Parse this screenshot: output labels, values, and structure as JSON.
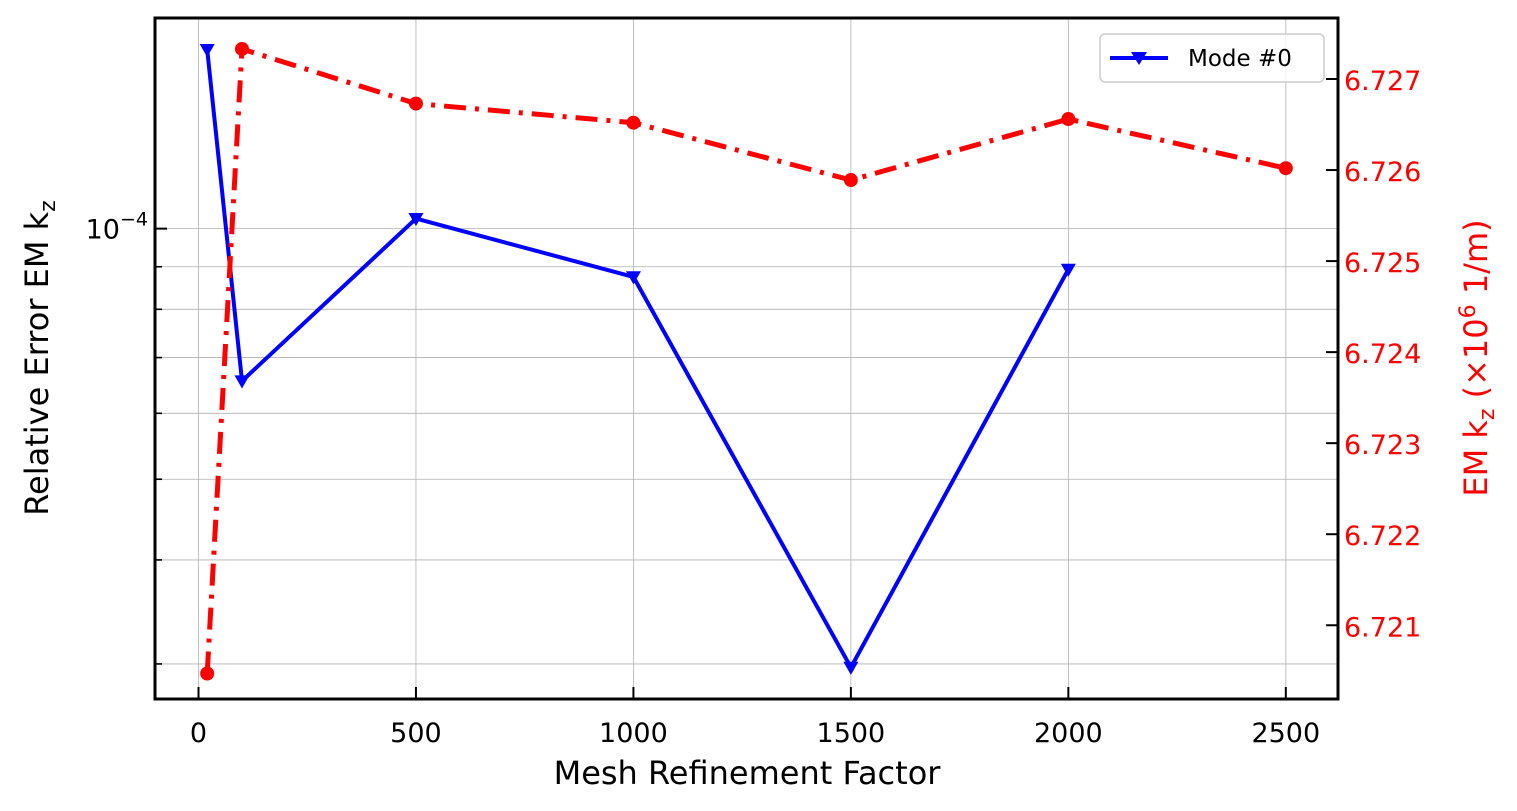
{
  "chart_data": {
    "type": "line",
    "xlabel": "Mesh Refinement Factor",
    "ylabel_left": "Relative Error EM k",
    "ylabel_left_sub": "z",
    "ylabel_right_main": "EM k",
    "ylabel_right_sub": "z",
    "ylabel_right_unit_pre": " (×10",
    "ylabel_right_unit_sup": "6",
    "ylabel_right_unit_post": " 1/m)",
    "xlim": [
      -100,
      2620
    ],
    "xticks": [
      0,
      500,
      1000,
      1500,
      2000,
      2500
    ],
    "ylim_left_log10": [
      -4.565,
      -3.747
    ],
    "yscale_left": "log",
    "yticks_left": [
      {
        "base": "10",
        "exp": "−4",
        "value_log10": -4
      }
    ],
    "ylim_right": [
      6.72019,
      6.72767
    ],
    "yticks_right": [
      "6.721",
      "6.722",
      "6.723",
      "6.724",
      "6.725",
      "6.726",
      "6.727"
    ],
    "yticks_right_values": [
      6.721,
      6.722,
      6.723,
      6.724,
      6.725,
      6.726,
      6.727
    ],
    "grid": true,
    "legend_position": "top-right",
    "series": [
      {
        "name": "Mode #0",
        "axis": "left",
        "color": "#0000ff",
        "marker": "triangle-down",
        "linestyle": "solid",
        "x": [
          20,
          100,
          500,
          1000,
          1500,
          2000
        ],
        "y_log10": [
          -3.785,
          -4.183,
          -3.988,
          -4.058,
          -4.527,
          -4.049
        ]
      },
      {
        "name": "",
        "axis": "right",
        "color": "#ff0000",
        "marker": "circle",
        "linestyle": "dash-dot",
        "x": [
          20,
          100,
          500,
          1000,
          1500,
          2000,
          2500
        ],
        "y": [
          6.72047,
          6.72733,
          6.72673,
          6.72652,
          6.72589,
          6.72656,
          6.72602
        ]
      }
    ]
  }
}
